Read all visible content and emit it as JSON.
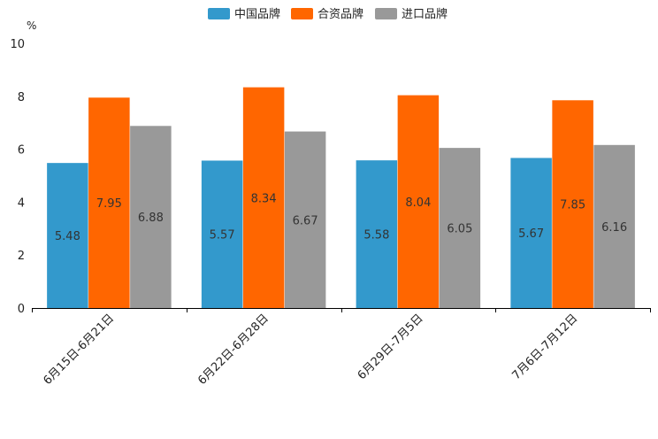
{
  "chart_data": {
    "type": "bar",
    "title": "",
    "unit_label": "%",
    "categories": [
      "6月15日-6月21日",
      "6月22日-6月28日",
      "6月29日-7月5日",
      "7月6日-7月12日"
    ],
    "series": [
      {
        "name": "中国品牌",
        "color": "#3399cc",
        "values": [
          5.48,
          5.57,
          5.58,
          5.67
        ],
        "labels": [
          "5.48",
          "5.57",
          "5.58",
          "5.67"
        ]
      },
      {
        "name": "合资品牌",
        "color": "#ff6600",
        "values": [
          7.95,
          8.34,
          8.04,
          7.85
        ],
        "labels": [
          "7.95",
          "8.34",
          "8.04",
          "7.85"
        ]
      },
      {
        "name": "进口品牌",
        "color": "#999999",
        "values": [
          6.88,
          6.67,
          6.05,
          6.16
        ],
        "labels": [
          "6.88",
          "6.67",
          "6.05",
          "6.16"
        ]
      }
    ],
    "ylim": [
      0,
      10
    ],
    "yticks": [
      "0",
      "2",
      "4",
      "6",
      "8",
      "10"
    ],
    "grid": false,
    "legend_position": "top-center",
    "xlabel": "",
    "ylabel": ""
  }
}
